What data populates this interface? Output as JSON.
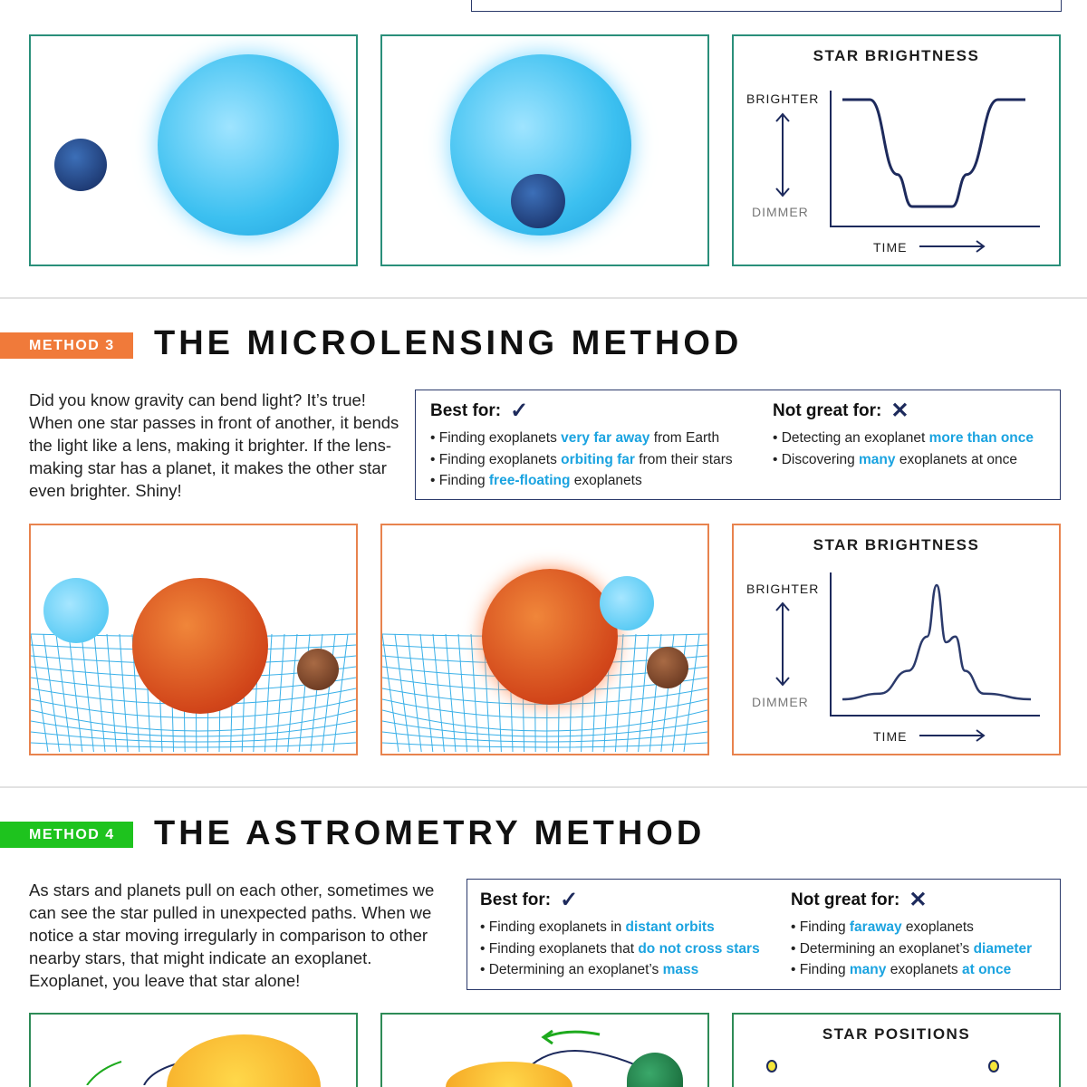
{
  "method2": {
    "chart": {
      "title": "STAR BRIGHTNESS",
      "brighter": "BRIGHTER",
      "dimmer": "DIMMER",
      "time": "TIME"
    }
  },
  "method3": {
    "tag": "METHOD 3",
    "title": "THE MICROLENSING METHOD",
    "color": "#f07a3a",
    "paragraph": "Did you know gravity can bend light? It’s true! When one star passes in front of another, it bends the light like a lens, making it brighter. If the lens-making star has a planet, it makes the other star even brighter. Shiny!",
    "best_for": {
      "label": "Best for:",
      "items": [
        [
          {
            "t": "Finding exoplanets "
          },
          {
            "t": "very far away",
            "hl": true
          },
          {
            "t": " from Earth"
          }
        ],
        [
          {
            "t": "Finding exoplanets "
          },
          {
            "t": "orbiting far",
            "hl": true
          },
          {
            "t": " from their stars"
          }
        ],
        [
          {
            "t": "Finding "
          },
          {
            "t": "free-floating",
            "hl": true
          },
          {
            "t": " exoplanets"
          }
        ]
      ]
    },
    "not_great_for": {
      "label": "Not great for:",
      "items": [
        [
          {
            "t": "Detecting an exoplanet "
          },
          {
            "t": "more than once",
            "hl": true
          }
        ],
        [
          {
            "t": "Discovering "
          },
          {
            "t": "many",
            "hl": true
          },
          {
            "t": " exoplanets at once"
          }
        ]
      ]
    },
    "chart": {
      "title": "STAR BRIGHTNESS",
      "brighter": "BRIGHTER",
      "dimmer": "DIMMER",
      "time": "TIME"
    }
  },
  "method4": {
    "tag": "METHOD 4",
    "title": "THE ASTROMETRY METHOD",
    "color": "#1ec31e",
    "paragraph": "As stars and planets pull on each other, sometimes we can see the star pulled in unexpected paths. When we notice a star moving irregularly in comparison to other nearby stars, that might indicate an exoplanet. Exoplanet, you leave that star alone!",
    "best_for": {
      "label": "Best for:",
      "items": [
        [
          {
            "t": "Finding exoplanets in "
          },
          {
            "t": "distant orbits",
            "hl": true
          }
        ],
        [
          {
            "t": "Finding exoplanets that "
          },
          {
            "t": "do not cross stars",
            "hl": true
          }
        ],
        [
          {
            "t": "Determining an exoplanet’s "
          },
          {
            "t": "mass",
            "hl": true
          }
        ]
      ]
    },
    "not_great_for": {
      "label": "Not great for:",
      "items": [
        [
          {
            "t": "Finding "
          },
          {
            "t": "faraway",
            "hl": true
          },
          {
            "t": " exoplanets"
          }
        ],
        [
          {
            "t": "Determining an exoplanet’s "
          },
          {
            "t": "diameter",
            "hl": true
          }
        ],
        [
          {
            "t": "Finding "
          },
          {
            "t": "many",
            "hl": true
          },
          {
            "t": " exoplanets "
          },
          {
            "t": "at once",
            "hl": true
          }
        ]
      ]
    },
    "chart": {
      "title": "STAR POSITIONS"
    }
  },
  "colors": {
    "highlight": "#1aa3e0",
    "navy": "#1d2a5c",
    "teal": "#2a8f7a",
    "orange": "#e8834e",
    "green": "#2e8b57"
  },
  "chart_data": [
    {
      "type": "line",
      "title": "STAR BRIGHTNESS",
      "xlabel": "TIME",
      "ylabel": "BRIGHTER / DIMMER",
      "x": [
        0,
        0.15,
        0.3,
        0.38,
        0.6,
        0.68,
        0.85,
        1
      ],
      "y": [
        1,
        1,
        0.3,
        0,
        0,
        0.3,
        1,
        1
      ]
    },
    {
      "type": "line",
      "title": "STAR BRIGHTNESS",
      "xlabel": "TIME",
      "ylabel": "BRIGHTER / DIMMER",
      "x": [
        0,
        0.2,
        0.35,
        0.45,
        0.5,
        0.55,
        0.6,
        0.65,
        0.75,
        1
      ],
      "y": [
        0,
        0.05,
        0.25,
        0.55,
        1,
        0.5,
        0.55,
        0.25,
        0.05,
        0
      ]
    }
  ]
}
